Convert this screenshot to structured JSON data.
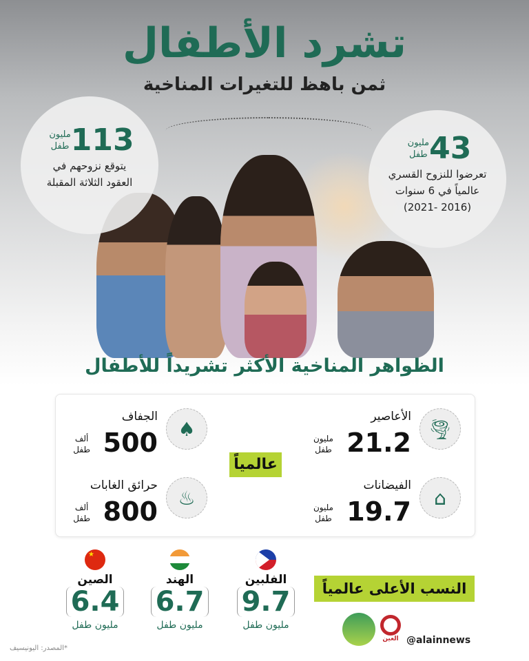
{
  "header": {
    "title": "تشرد الأطفال",
    "subtitle": "ثمن باهظ للتغيرات المناخية"
  },
  "stats": [
    {
      "value": "43",
      "unit_top": "مليون",
      "unit_bottom": "طفل",
      "desc": [
        "تعرضوا للنزوح القسري",
        "عالمياً في 6 سنوات",
        "(2016 -2021)"
      ]
    },
    {
      "value": "113",
      "unit_top": "مليون",
      "unit_bottom": "طفل",
      "desc": [
        "يتوقع نزوحهم في",
        "العقود الثلاثة المقبلة"
      ]
    }
  ],
  "section_title": "الظواهر المناخية الأكثر تشريداً للأطفال",
  "global_label": "عالمياً",
  "phenomena": [
    {
      "name": "الأعاصير",
      "value": "21.2",
      "unit_top": "مليون",
      "unit_bottom": "طفل",
      "icon": "tornado-icon"
    },
    {
      "name": "الفيضانات",
      "value": "19.7",
      "unit_top": "مليون",
      "unit_bottom": "طفل",
      "icon": "flood-house-icon"
    },
    {
      "name": "الجفاف",
      "value": "500",
      "unit_top": "ألف",
      "unit_bottom": "طفل",
      "icon": "drought-icon"
    },
    {
      "name": "حرائق الغابات",
      "value": "800",
      "unit_top": "ألف",
      "unit_bottom": "طفل",
      "icon": "forest-fire-icon"
    }
  ],
  "highest": {
    "label": "النسب الأعلى عالمياً",
    "countries": [
      {
        "name": "الفلبين",
        "value": "9.7",
        "unit": "مليون طفل",
        "flag": "philippines-flag"
      },
      {
        "name": "الهند",
        "value": "6.7",
        "unit": "مليون طفل",
        "flag": "india-flag"
      },
      {
        "name": "الصين",
        "value": "6.4",
        "unit": "مليون طفل",
        "flag": "china-flag"
      }
    ]
  },
  "footer": {
    "source": "*المصدر: اليونيسيف",
    "handle": "@alainnews",
    "logo_alain": "العين",
    "logo_earth": "نداء الأرض THE EARTH CALL"
  },
  "colors": {
    "green": "#1f6b55",
    "lime": "#b5d334"
  }
}
